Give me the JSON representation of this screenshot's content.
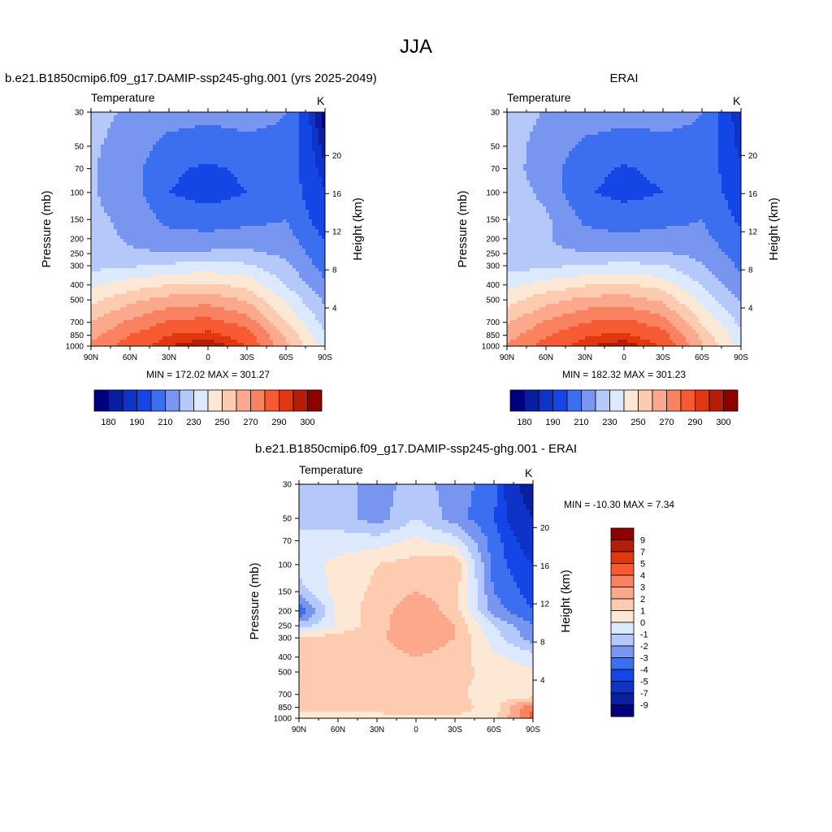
{
  "figure": {
    "title": "JJA"
  },
  "panels": [
    {
      "id": "model",
      "title": "b.e21.B1850cmip6.f09_g17.DAMIP-ssp245-ghg.001 (yrs 2025-2049)",
      "variable": "Temperature",
      "units": "K",
      "min_max": "MIN = 172.02  MAX = 301.27"
    },
    {
      "id": "obs",
      "title": "ERAI",
      "variable": "Temperature",
      "units": "K",
      "min_max": "MIN = 182.32  MAX = 301.23"
    },
    {
      "id": "diff",
      "title": "b.e21.B1850cmip6.f09_g17.DAMIP-ssp245-ghg.001 - ERAI",
      "variable": "Temperature",
      "units": "K",
      "min_max": "MIN = -10.30  MAX =   7.34"
    }
  ],
  "axes": {
    "ylabel_left": "Pressure (mb)",
    "ylabel_right": "Height (km)",
    "x_ticks": [
      "90N",
      "60N",
      "30N",
      "0",
      "30S",
      "60S",
      "90S"
    ],
    "pressure_ticks": [
      "30",
      "50",
      "70",
      "100",
      "150",
      "200",
      "250",
      "300",
      "400",
      "500",
      "700",
      "850",
      "1000"
    ],
    "height_ticks": [
      "20",
      "16",
      "12",
      "8",
      "4"
    ]
  },
  "colorbars": {
    "abs_labels": [
      "180",
      "190",
      "210",
      "230",
      "250",
      "270",
      "290",
      "300"
    ],
    "diff_labels": [
      "9",
      "7",
      "5",
      "4",
      "3",
      "2",
      "1",
      "0",
      "-1",
      "-2",
      "-3",
      "-4",
      "-5",
      "-7",
      "-9"
    ],
    "abs_colors": [
      "#00007f",
      "#0a1ea0",
      "#0f32c8",
      "#1446e6",
      "#3c6ef0",
      "#7896f0",
      "#b4c8fa",
      "#dce8fc",
      "#fde8d6",
      "#fdcbb0",
      "#fca88c",
      "#fa8260",
      "#f55a32",
      "#e1370f",
      "#b41e06",
      "#8c0000"
    ],
    "diff_colors": [
      "#00007f",
      "#0a1ea0",
      "#0f32c8",
      "#1446e6",
      "#3c6ef0",
      "#7896f0",
      "#b4c8fa",
      "#dce8fc",
      "#fde8d6",
      "#fdcbb0",
      "#fca88c",
      "#fa8260",
      "#f55a32",
      "#e1370f",
      "#b41e06",
      "#8c0000"
    ]
  },
  "chart_data": [
    {
      "type": "heatmap",
      "panel": "model",
      "title": "b.e21.B1850cmip6.f09_g17.DAMIP-ssp245-ghg.001 (yrs 2025-2049)",
      "variable": "Temperature",
      "units": "K",
      "x": [
        90,
        60,
        30,
        0,
        -30,
        -60,
        -90
      ],
      "y": [
        1000,
        850,
        700,
        500,
        400,
        300,
        250,
        200,
        150,
        100,
        70,
        50,
        30
      ],
      "values": [
        [
          272,
          285,
          295,
          300,
          290,
          262,
          235
        ],
        [
          267,
          280,
          290,
          293,
          285,
          258,
          232
        ],
        [
          260,
          272,
          281,
          284,
          276,
          250,
          226
        ],
        [
          247,
          257,
          264,
          266,
          259,
          238,
          218
        ],
        [
          238,
          245,
          250,
          252,
          247,
          230,
          212
        ],
        [
          227,
          229,
          232,
          234,
          232,
          222,
          206
        ],
        [
          224,
          221,
          221,
          222,
          222,
          218,
          203
        ],
        [
          223,
          219,
          214,
          213,
          215,
          214,
          199
        ],
        [
          222,
          218,
          207,
          205,
          207,
          210,
          194
        ],
        [
          221,
          215,
          200,
          196,
          200,
          207,
          190
        ],
        [
          221,
          214,
          202,
          198,
          202,
          207,
          186
        ],
        [
          222,
          215,
          207,
          205,
          207,
          208,
          182
        ],
        [
          224,
          218,
          214,
          213,
          214,
          210,
          176
        ]
      ],
      "levels": [
        180,
        185,
        190,
        200,
        210,
        220,
        230,
        240,
        250,
        260,
        270,
        280,
        290,
        295,
        300
      ],
      "min": 172.02,
      "max": 301.27,
      "ylabel": "Pressure (mb)",
      "ylabel_right": "Height (km)"
    },
    {
      "type": "heatmap",
      "panel": "obs",
      "title": "ERAI",
      "variable": "Temperature",
      "units": "K",
      "x": [
        90,
        60,
        30,
        0,
        -30,
        -60,
        -90
      ],
      "y": [
        1000,
        850,
        700,
        500,
        400,
        300,
        250,
        200,
        150,
        100,
        70,
        50,
        30
      ],
      "values": [
        [
          271,
          284,
          294,
          299,
          289,
          261,
          236
        ],
        [
          266,
          279,
          289,
          292,
          284,
          257,
          233
        ],
        [
          259,
          271,
          280,
          283,
          275,
          249,
          227
        ],
        [
          246,
          256,
          263,
          265,
          258,
          237,
          219
        ],
        [
          237,
          244,
          249,
          251,
          246,
          229,
          213
        ],
        [
          226,
          228,
          231,
          233,
          231,
          221,
          208
        ],
        [
          226,
          222,
          221,
          222,
          221,
          217,
          205
        ],
        [
          228,
          221,
          214,
          212,
          214,
          213,
          202
        ],
        [
          231,
          222,
          208,
          205,
          207,
          210,
          198
        ],
        [
          226,
          217,
          201,
          197,
          200,
          207,
          194
        ],
        [
          224,
          215,
          203,
          199,
          202,
          207,
          191
        ],
        [
          224,
          216,
          208,
          205,
          207,
          208,
          187
        ],
        [
          226,
          219,
          215,
          214,
          214,
          210,
          184
        ]
      ],
      "levels": [
        180,
        185,
        190,
        200,
        210,
        220,
        230,
        240,
        250,
        260,
        270,
        280,
        290,
        295,
        300
      ],
      "min": 182.32,
      "max": 301.23,
      "ylabel": "Pressure (mb)",
      "ylabel_right": "Height (km)"
    },
    {
      "type": "heatmap",
      "panel": "diff",
      "title": "b.e21.B1850cmip6.f09_g17.DAMIP-ssp245-ghg.001 - ERAI",
      "variable": "Temperature",
      "units": "K",
      "x": [
        90,
        60,
        30,
        0,
        -30,
        -60,
        -90
      ],
      "y": [
        1000,
        850,
        700,
        500,
        400,
        300,
        250,
        200,
        150,
        100,
        70,
        50,
        30
      ],
      "values": [
        [
          0.5,
          0.5,
          0.8,
          0.8,
          0.8,
          0.6,
          4.5
        ],
        [
          1.2,
          1.5,
          1.2,
          1.5,
          1.5,
          0.5,
          4.0
        ],
        [
          1.8,
          1.5,
          1.2,
          1.6,
          1.2,
          0.5,
          0.3
        ],
        [
          1.5,
          1.5,
          1.2,
          1.8,
          1.5,
          0.5,
          0.2
        ],
        [
          1.4,
          1.2,
          1.5,
          2.0,
          1.5,
          0.2,
          -0.5
        ],
        [
          1.0,
          1.5,
          1.8,
          2.8,
          2.0,
          -0.5,
          -2.5
        ],
        [
          -1.5,
          0.2,
          1.5,
          3.0,
          2.0,
          -1.0,
          -3.0
        ],
        [
          -4.0,
          0.3,
          1.5,
          2.8,
          1.5,
          -2.5,
          -4.0
        ],
        [
          -1.5,
          0.5,
          1.2,
          2.0,
          1.5,
          -3.0,
          -4.5
        ],
        [
          -0.5,
          0.3,
          1.0,
          1.5,
          1.8,
          -3.5,
          -5.0
        ],
        [
          -0.5,
          -0.5,
          -0.5,
          0.2,
          -0.5,
          -3.5,
          -6.0
        ],
        [
          -1.5,
          -1.5,
          -2.5,
          -1.0,
          -2.5,
          -4.0,
          -7.0
        ],
        [
          -1.5,
          -1.5,
          -2.5,
          -1.5,
          -2.5,
          -3.5,
          -9.0
        ]
      ],
      "levels": [
        -9,
        -7,
        -5,
        -4,
        -3,
        -2,
        -1,
        0,
        1,
        2,
        3,
        4,
        5,
        7,
        9
      ],
      "min": -10.3,
      "max": 7.34,
      "ylabel": "Pressure (mb)",
      "ylabel_right": "Height (km)"
    }
  ]
}
